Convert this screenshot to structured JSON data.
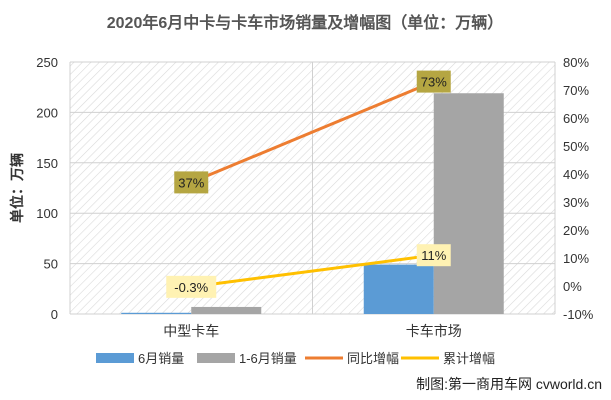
{
  "chart_data": {
    "type": "bar",
    "title": "2020年6月中卡与卡车市场销量及增幅图（单位：万辆）",
    "ylabel": "单位：万辆",
    "categories": [
      "中型卡车",
      "卡车市场"
    ],
    "ylim": [
      0,
      250
    ],
    "yticks": [
      "0",
      "50",
      "100",
      "150",
      "200",
      "250"
    ],
    "y2lim": [
      -10,
      80
    ],
    "y2ticks": [
      "-10%",
      "0%",
      "10%",
      "20%",
      "30%",
      "40%",
      "50%",
      "60%",
      "70%",
      "80%"
    ],
    "grid": true,
    "legend_position": "bottom",
    "series": [
      {
        "name": "6月销量",
        "type": "bar",
        "axis": "left",
        "color": "#5B9BD5",
        "values": [
          1.2,
          49
        ]
      },
      {
        "name": "1-6月销量",
        "type": "bar",
        "axis": "left",
        "color": "#A5A5A5",
        "values": [
          7,
          219
        ]
      },
      {
        "name": "同比增幅",
        "type": "line",
        "axis": "right",
        "color": "#ED7D31",
        "values": [
          37,
          73
        ],
        "labels": [
          "37%",
          "73%"
        ],
        "label_bg": "#B5A642"
      },
      {
        "name": "累计增幅",
        "type": "line",
        "axis": "right",
        "color": "#FFC000",
        "values": [
          -0.3,
          11
        ],
        "labels": [
          "-0.3%",
          "11%"
        ],
        "label_bg": "#FFF2B3"
      }
    ]
  },
  "credit": "制图:第一商用车网 cvworld.cn"
}
